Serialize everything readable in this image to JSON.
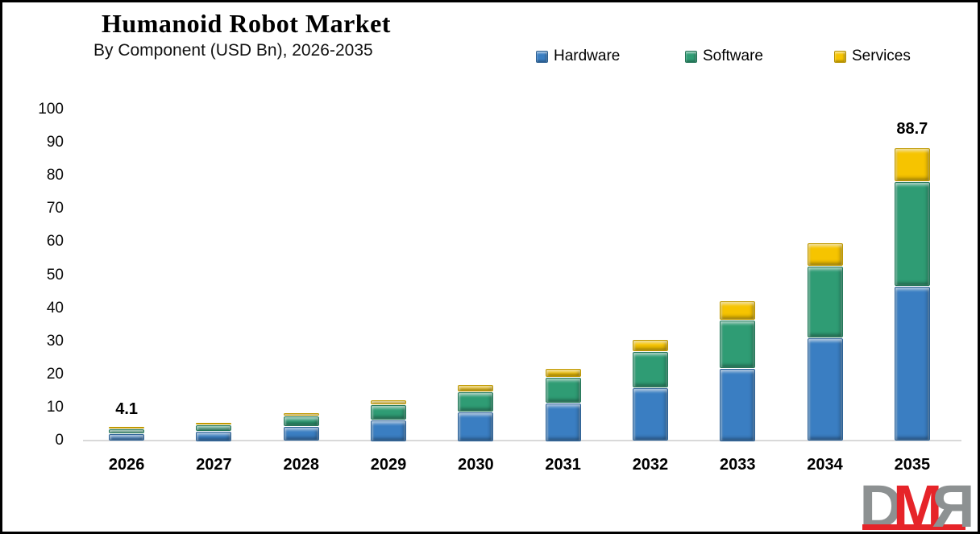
{
  "header": {
    "title": "Humanoid Robot Market",
    "subtitle": "By Component (USD Bn), 2026-2035"
  },
  "chart_data": {
    "type": "bar",
    "stacked": true,
    "title": "Humanoid Robot Market",
    "subtitle": "By Component (USD Bn), 2026-2035",
    "categories": [
      "2026",
      "2027",
      "2028",
      "2029",
      "2030",
      "2031",
      "2032",
      "2033",
      "2034",
      "2035"
    ],
    "series": [
      {
        "name": "Hardware",
        "color": "#3A7EC2",
        "values": [
          2.2,
          3.0,
          4.4,
          6.6,
          9.0,
          11.5,
          16.2,
          22.0,
          31.2,
          46.8
        ]
      },
      {
        "name": "Software",
        "color": "#2F9C74",
        "values": [
          1.4,
          2.0,
          3.1,
          4.5,
          6.1,
          7.8,
          10.8,
          14.8,
          21.6,
          31.7
        ]
      },
      {
        "name": "Services",
        "color": "#F6C400",
        "values": [
          0.5,
          0.7,
          1.0,
          1.6,
          2.2,
          2.7,
          3.8,
          5.6,
          7.2,
          10.2
        ]
      }
    ],
    "totals": [
      4.1,
      5.7,
      8.5,
      12.7,
      17.3,
      22.0,
      30.8,
      42.4,
      60.0,
      88.7
    ],
    "total_labels": [
      {
        "category": "2026",
        "text": "4.1"
      },
      {
        "category": "2035",
        "text": "88.7"
      }
    ],
    "xlabel": "",
    "ylabel": "",
    "ylim": [
      0,
      100
    ],
    "yticks": [
      "0",
      "10",
      "20",
      "30",
      "40",
      "50",
      "60",
      "70",
      "80",
      "90",
      "100"
    ],
    "grid": false,
    "legend_position": "top",
    "axis_line_color": "#D9D9D9"
  },
  "legend": {
    "items": [
      {
        "label": "Hardware",
        "color": "#3A7EC2"
      },
      {
        "label": "Software",
        "color": "#2F9C74"
      },
      {
        "label": "Services",
        "color": "#F6C400"
      }
    ]
  },
  "logo": {
    "letters": [
      {
        "text": "D",
        "color": "#8D9192",
        "mirrored": false
      },
      {
        "text": "M",
        "color": "#E62429",
        "mirrored": false
      },
      {
        "text": "R",
        "color": "#8D9192",
        "mirrored": true
      }
    ],
    "bar_color": "#E62429"
  }
}
